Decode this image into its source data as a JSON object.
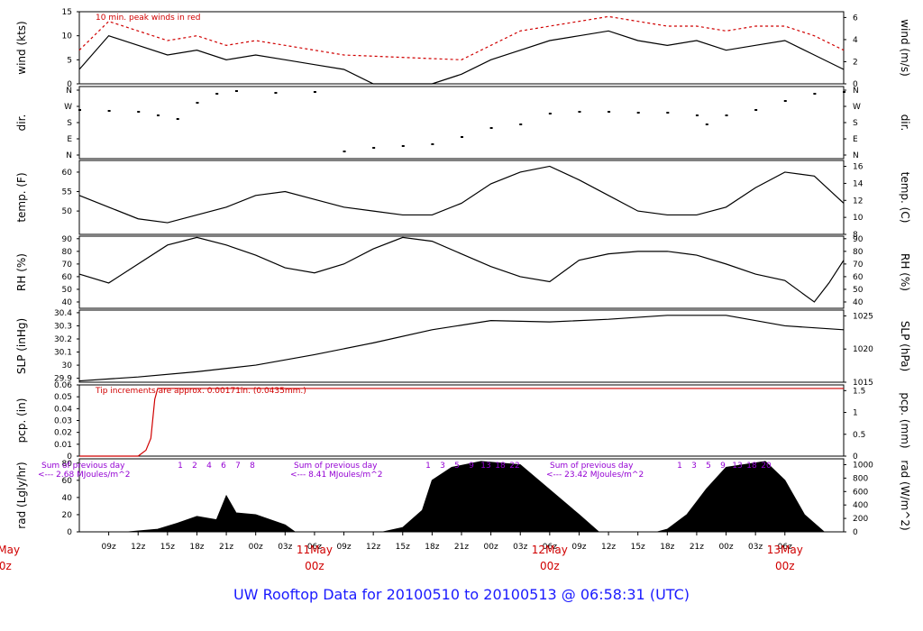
{
  "footer_title": "UW Rooftop Data for 20100510  to  20100513 @ 06:58:31  (UTC)",
  "colors": {
    "trace": "#000000",
    "peak": "#d00000",
    "precip": "#d00000",
    "solar_note": "#9400d3",
    "title": "#1a1aff"
  },
  "chart_data": [
    {
      "type": "line",
      "ylabel": "wind (kts)",
      "ylabel_right": "wind (m/s)",
      "ylim": [
        0,
        15
      ],
      "yticks": [
        0,
        5,
        10,
        15
      ],
      "yticks_right": [
        0,
        2,
        4,
        6
      ],
      "annotation": "10 min. peak winds in red",
      "series": [
        {
          "x": [
            0,
            3,
            6,
            9,
            12,
            15,
            18,
            21,
            24,
            27,
            30,
            33,
            36,
            39,
            42,
            45,
            48,
            51,
            54,
            57,
            60,
            63,
            66,
            69,
            72,
            75,
            78
          ],
          "values": [
            3,
            10,
            8,
            6,
            7,
            5,
            6,
            5,
            4,
            3,
            0,
            0,
            0,
            2,
            5,
            7,
            9,
            10,
            11,
            9,
            8,
            9,
            7,
            8,
            9,
            6,
            3
          ]
        },
        {
          "x": [
            0,
            3,
            6,
            9,
            12,
            15,
            18,
            21,
            24,
            27,
            39,
            42,
            45,
            48,
            51,
            54,
            57,
            60,
            63,
            66,
            69,
            72,
            75,
            78
          ],
          "values": [
            7,
            13,
            11,
            9,
            10,
            8,
            9,
            8,
            7,
            6,
            5,
            8,
            11,
            12,
            13,
            14,
            13,
            12,
            12,
            11,
            12,
            12,
            10,
            7
          ]
        }
      ]
    },
    {
      "type": "scatter",
      "ylabel": "dir.",
      "ylabel_right": "dir.",
      "ytick_labels": [
        "N",
        "W",
        "S",
        "E",
        "N"
      ],
      "series": [
        {
          "x": [
            0,
            3,
            6,
            8,
            10,
            12,
            14,
            16,
            20,
            24,
            27,
            30,
            33,
            36,
            39,
            42,
            45,
            48,
            51,
            54,
            57,
            60,
            63,
            64,
            66,
            69,
            72,
            75,
            78
          ],
          "values": [
            250,
            245,
            240,
            220,
            200,
            290,
            340,
            355,
            345,
            350,
            20,
            40,
            50,
            60,
            100,
            150,
            170,
            230,
            240,
            240,
            235,
            235,
            220,
            170,
            220,
            250,
            300,
            340,
            350
          ]
        }
      ]
    },
    {
      "type": "line",
      "ylabel": "temp. (F)",
      "ylabel_right": "temp. (C)",
      "ylim": [
        44,
        63
      ],
      "yticks": [
        50,
        55,
        60
      ],
      "yticks_right": [
        8,
        10,
        12,
        14,
        16
      ],
      "series": [
        {
          "x": [
            0,
            3,
            6,
            9,
            12,
            15,
            18,
            21,
            24,
            27,
            30,
            33,
            36,
            39,
            42,
            45,
            48,
            51,
            54,
            57,
            60,
            63,
            66,
            69,
            72,
            75,
            78
          ],
          "values": [
            54,
            51,
            48,
            47,
            49,
            51,
            54,
            55,
            53,
            51,
            50,
            49,
            49,
            52,
            57,
            60,
            61.5,
            58,
            54,
            50,
            49,
            49,
            51,
            56,
            60,
            59,
            52
          ]
        }
      ]
    },
    {
      "type": "line",
      "ylabel": "RH (%)",
      "ylabel_right": "RH (%)",
      "ylim": [
        35,
        92
      ],
      "yticks": [
        40,
        50,
        60,
        70,
        80,
        90
      ],
      "series": [
        {
          "x": [
            0,
            3,
            6,
            9,
            12,
            15,
            18,
            21,
            24,
            27,
            30,
            33,
            36,
            39,
            42,
            45,
            48,
            51,
            54,
            57,
            60,
            63,
            66,
            69,
            72,
            75,
            76.5,
            78
          ],
          "values": [
            62,
            55,
            70,
            85,
            91,
            85,
            77,
            67,
            63,
            70,
            82,
            91,
            88,
            78,
            68,
            60,
            56,
            73,
            78,
            80,
            80,
            77,
            70,
            62,
            57,
            40,
            55,
            73
          ]
        }
      ]
    },
    {
      "type": "line",
      "ylabel": "SLP (inHg)",
      "ylabel_right": "SLP (hPa)",
      "ylim": [
        29.87,
        30.42
      ],
      "yticks": [
        29.9,
        30.0,
        30.1,
        30.2,
        30.3,
        30.4
      ],
      "yticks_right": [
        1015,
        1020,
        1025
      ],
      "series": [
        {
          "x": [
            0,
            6,
            12,
            18,
            24,
            30,
            36,
            42,
            48,
            54,
            60,
            66,
            72,
            78
          ],
          "values": [
            29.88,
            29.91,
            29.95,
            30.0,
            30.08,
            30.17,
            30.27,
            30.34,
            30.33,
            30.35,
            30.38,
            30.38,
            30.3,
            30.27
          ]
        }
      ]
    },
    {
      "type": "line",
      "ylabel": "pcp. (in)",
      "ylabel_right": "pcp. (mm)",
      "ylim": [
        0,
        0.06
      ],
      "yticks": [
        0,
        0.01,
        0.02,
        0.03,
        0.04,
        0.05,
        0.06
      ],
      "yticks_right": [
        0,
        0.5,
        1,
        1.5
      ],
      "annotation": "Tip increments are approx. 0.00171in. (0.0435mm.)",
      "series": [
        {
          "x": [
            0,
            6,
            6.8,
            7.3,
            7.7,
            8,
            78
          ],
          "values": [
            0,
            0,
            0.005,
            0.015,
            0.048,
            0.057,
            0.057
          ]
        }
      ]
    },
    {
      "type": "area",
      "ylabel": "rad (Lgly/hr)",
      "ylabel_right": "rad (W/m^2)",
      "ylim": [
        0,
        85
      ],
      "yticks": [
        0,
        20,
        40,
        60,
        80
      ],
      "yticks_right": [
        0,
        200,
        400,
        600,
        800,
        1000
      ],
      "daily_notes": [
        {
          "line1": "Sum of previous day",
          "line2": "<--- 2.68 MJoules/m^2"
        },
        {
          "line1": "Sum of previous day",
          "line2": "<--- 8.41 MJoules/m^2"
        },
        {
          "line1": "Sum of previous day",
          "line2": "<--- 23.42 MJoules/m^2"
        }
      ],
      "hour_markers": [
        [
          "1",
          "2",
          "4",
          "6",
          "7",
          "8"
        ],
        [
          "1",
          "3",
          "5",
          "9",
          "13",
          "18",
          "22"
        ],
        [
          "1",
          "3",
          "5",
          "9",
          "13",
          "18",
          "20"
        ]
      ],
      "series": [
        {
          "x": [
            0,
            5,
            8,
            10,
            12,
            14,
            15,
            16,
            18,
            21,
            22,
            24,
            27,
            29,
            31,
            33,
            35,
            36,
            38,
            41,
            45,
            51,
            53,
            55,
            57,
            59,
            60,
            62,
            63,
            64,
            66,
            70,
            72,
            74,
            76,
            78
          ],
          "values": [
            0,
            0,
            3,
            10,
            18,
            14,
            42,
            22,
            20,
            8,
            0,
            0,
            0,
            0,
            0,
            5,
            25,
            60,
            75,
            82,
            78,
            20,
            0,
            0,
            0,
            0,
            3,
            20,
            35,
            50,
            75,
            82,
            60,
            20,
            0,
            0
          ]
        }
      ]
    }
  ],
  "x_axis": {
    "tick_labels": [
      "09z",
      "12z",
      "15z",
      "18z",
      "21z",
      "00z",
      "03z",
      "06z",
      "09z",
      "12z",
      "15z",
      "18z",
      "21z",
      "00z",
      "03z",
      "06z",
      "09z",
      "12z",
      "15z",
      "18z",
      "21z",
      "00z",
      "03z",
      "06z"
    ],
    "day_labels": [
      {
        "month_day": "10May",
        "hour": "00z"
      },
      {
        "month_day": "11May",
        "hour": "00z"
      },
      {
        "month_day": "12May",
        "hour": "00z"
      },
      {
        "month_day": "13May",
        "hour": "00z"
      }
    ]
  }
}
